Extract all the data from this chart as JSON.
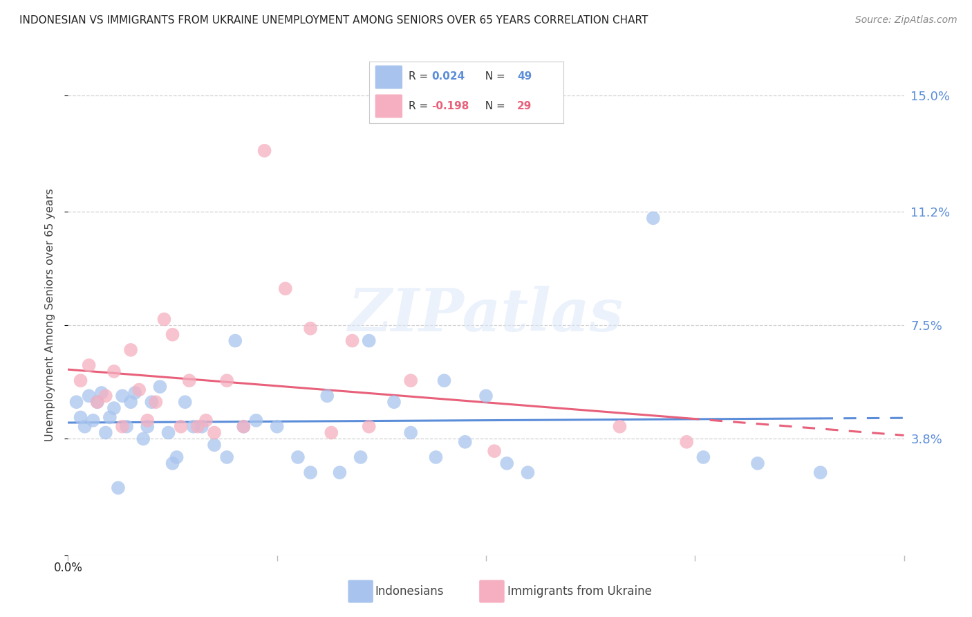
{
  "title": "INDONESIAN VS IMMIGRANTS FROM UKRAINE UNEMPLOYMENT AMONG SENIORS OVER 65 YEARS CORRELATION CHART",
  "source": "Source: ZipAtlas.com",
  "ylabel": "Unemployment Among Seniors over 65 years",
  "r_indonesian": 0.024,
  "n_indonesian": 49,
  "r_ukraine": -0.198,
  "n_ukraine": 29,
  "yticks": [
    0.0,
    0.038,
    0.075,
    0.112,
    0.15
  ],
  "ytick_labels": [
    "",
    "3.8%",
    "7.5%",
    "11.2%",
    "15.0%"
  ],
  "xlim": [
    0.0,
    0.2
  ],
  "ylim": [
    0.0,
    0.157
  ],
  "indonesian_color": "#a8c4ee",
  "ukraine_color": "#f5afc0",
  "indonesian_line_color": "#5b8dd9",
  "ukraine_line_color": "#e8607a",
  "background_color": "#ffffff",
  "indonesian_x": [
    0.002,
    0.003,
    0.004,
    0.005,
    0.006,
    0.007,
    0.008,
    0.009,
    0.01,
    0.011,
    0.012,
    0.013,
    0.014,
    0.015,
    0.016,
    0.018,
    0.019,
    0.02,
    0.022,
    0.024,
    0.025,
    0.026,
    0.028,
    0.03,
    0.032,
    0.035,
    0.038,
    0.04,
    0.042,
    0.045,
    0.05,
    0.055,
    0.058,
    0.062,
    0.065,
    0.07,
    0.072,
    0.078,
    0.082,
    0.088,
    0.09,
    0.095,
    0.1,
    0.105,
    0.11,
    0.14,
    0.152,
    0.165,
    0.18
  ],
  "indonesian_y": [
    0.05,
    0.045,
    0.042,
    0.052,
    0.044,
    0.05,
    0.053,
    0.04,
    0.045,
    0.048,
    0.022,
    0.052,
    0.042,
    0.05,
    0.053,
    0.038,
    0.042,
    0.05,
    0.055,
    0.04,
    0.03,
    0.032,
    0.05,
    0.042,
    0.042,
    0.036,
    0.032,
    0.07,
    0.042,
    0.044,
    0.042,
    0.032,
    0.027,
    0.052,
    0.027,
    0.032,
    0.07,
    0.05,
    0.04,
    0.032,
    0.057,
    0.037,
    0.052,
    0.03,
    0.027,
    0.11,
    0.032,
    0.03,
    0.027
  ],
  "ukraine_x": [
    0.003,
    0.005,
    0.007,
    0.009,
    0.011,
    0.013,
    0.015,
    0.017,
    0.019,
    0.021,
    0.023,
    0.025,
    0.027,
    0.029,
    0.031,
    0.033,
    0.035,
    0.038,
    0.042,
    0.047,
    0.052,
    0.058,
    0.063,
    0.068,
    0.072,
    0.082,
    0.102,
    0.132,
    0.148
  ],
  "ukraine_y": [
    0.057,
    0.062,
    0.05,
    0.052,
    0.06,
    0.042,
    0.067,
    0.054,
    0.044,
    0.05,
    0.077,
    0.072,
    0.042,
    0.057,
    0.042,
    0.044,
    0.04,
    0.057,
    0.042,
    0.132,
    0.087,
    0.074,
    0.04,
    0.07,
    0.042,
    0.057,
    0.034,
    0.042,
    0.037
  ]
}
